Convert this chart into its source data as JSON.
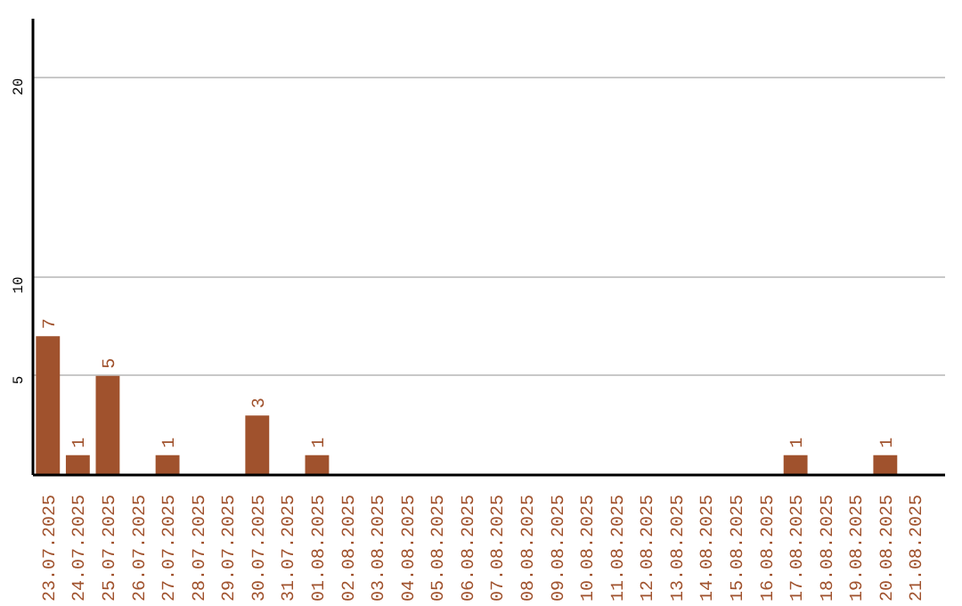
{
  "chart_data": {
    "type": "bar",
    "categories": [
      "23.07.2025",
      "24.07.2025",
      "25.07.2025",
      "26.07.2025",
      "27.07.2025",
      "28.07.2025",
      "29.07.2025",
      "30.07.2025",
      "31.07.2025",
      "01.08.2025",
      "02.08.2025",
      "03.08.2025",
      "04.08.2025",
      "05.08.2025",
      "06.08.2025",
      "07.08.2025",
      "08.08.2025",
      "09.08.2025",
      "10.08.2025",
      "11.08.2025",
      "12.08.2025",
      "13.08.2025",
      "14.08.2025",
      "15.08.2025",
      "16.08.2025",
      "17.08.2025",
      "18.08.2025",
      "19.08.2025",
      "20.08.2025",
      "21.08.2025"
    ],
    "values": [
      7,
      1,
      5,
      0,
      1,
      0,
      0,
      3,
      0,
      1,
      0,
      0,
      0,
      0,
      0,
      0,
      0,
      0,
      0,
      0,
      0,
      0,
      0,
      0,
      0,
      1,
      0,
      0,
      1,
      0
    ],
    "value_labels": [
      "7",
      "1",
      "5",
      null,
      "1",
      null,
      null,
      "3",
      null,
      "1",
      null,
      null,
      null,
      null,
      null,
      null,
      null,
      null,
      null,
      null,
      null,
      null,
      null,
      null,
      null,
      "1",
      null,
      null,
      "1",
      null
    ],
    "color": "#a0522d",
    "ylim": [
      0,
      23
    ],
    "yticks": [
      5,
      10,
      20
    ],
    "grid": "y"
  }
}
